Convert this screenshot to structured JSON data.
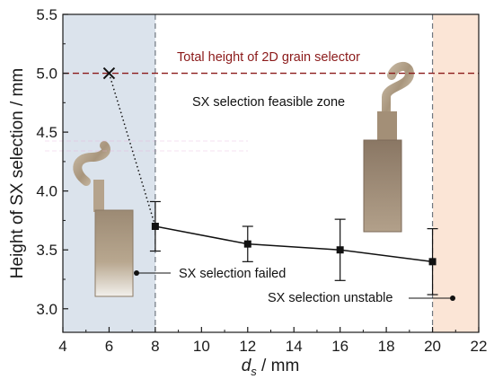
{
  "chart_data": {
    "type": "scatter",
    "xlabel_main": "d",
    "xlabel_sub": "s",
    "xlabel_unit": " / mm",
    "ylabel": "Height of SX selection / mm",
    "xlim": [
      4,
      22
    ],
    "ylim": [
      2.8,
      5.5
    ],
    "xticks": [
      4,
      6,
      8,
      10,
      12,
      14,
      16,
      18,
      20,
      22
    ],
    "yticks": [
      3.0,
      3.5,
      4.0,
      4.5,
      5.0,
      5.5
    ],
    "ytick_labels": [
      "3.0",
      "3.5",
      "4.0",
      "4.5",
      "5.0",
      "5.5"
    ],
    "grid": false,
    "series": [
      {
        "marker": "square",
        "line": "solid",
        "color": "#111111",
        "x": [
          8,
          12,
          16,
          20
        ],
        "y": [
          3.7,
          3.55,
          3.5,
          3.4
        ],
        "err_low": [
          3.49,
          3.4,
          3.24,
          3.12
        ],
        "err_high": [
          3.91,
          3.7,
          3.76,
          3.68
        ]
      }
    ],
    "failed_point": {
      "x": 6,
      "y": 5.0,
      "marker": "x"
    },
    "failed_link_style": "dotted",
    "reference_line": {
      "y": 5.0,
      "label": "Total height of 2D grain selector",
      "color": "#8b1a1a"
    },
    "boundary_lines_x": [
      8,
      20
    ],
    "zones": [
      {
        "x_from": 4,
        "x_to": 8,
        "color": "#dce4ec",
        "label": "SX selection failed"
      },
      {
        "x_from": 8,
        "x_to": 20,
        "color": "#ffffff",
        "label": "SX selection feasible zone"
      },
      {
        "x_from": 20,
        "x_to": 22,
        "color": "#fbe6d8",
        "label": "SX selection unstable"
      }
    ]
  }
}
